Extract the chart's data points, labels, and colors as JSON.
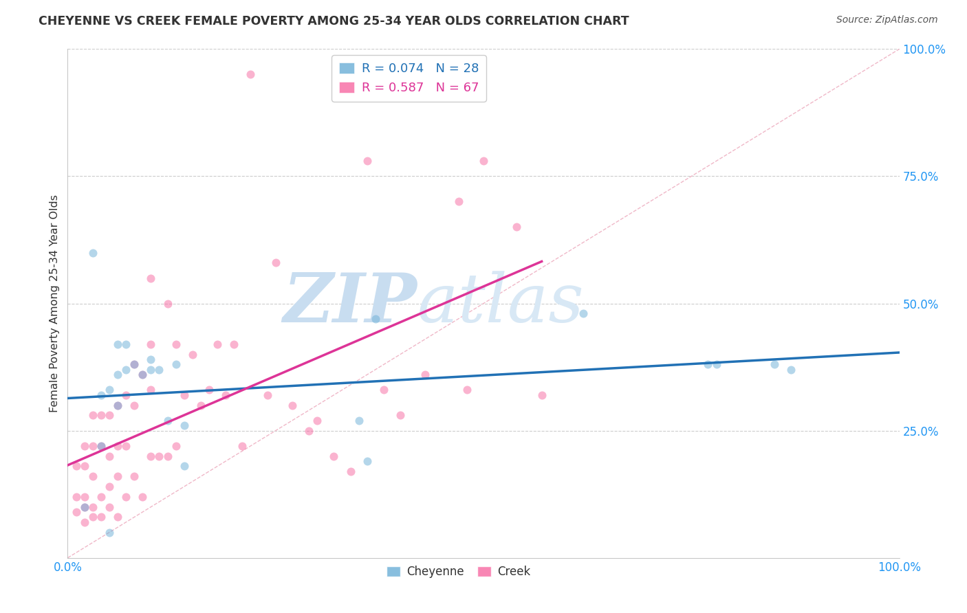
{
  "title": "CHEYENNE VS CREEK FEMALE POVERTY AMONG 25-34 YEAR OLDS CORRELATION CHART",
  "source": "Source: ZipAtlas.com",
  "ylabel": "Female Poverty Among 25-34 Year Olds",
  "legend_cheyenne": "R = 0.074   N = 28",
  "legend_creek": "R = 0.587   N = 67",
  "cheyenne_color": "#6baed6",
  "creek_color": "#f768a1",
  "trendline_cheyenne_color": "#2171b5",
  "trendline_creek_color": "#dd3497",
  "diagonal_color": "#cccccc",
  "cheyenne_x": [
    0.02,
    0.03,
    0.04,
    0.04,
    0.05,
    0.05,
    0.06,
    0.06,
    0.06,
    0.07,
    0.07,
    0.08,
    0.09,
    0.1,
    0.1,
    0.11,
    0.12,
    0.13,
    0.14,
    0.14,
    0.35,
    0.36,
    0.37,
    0.62,
    0.77,
    0.78,
    0.85,
    0.87
  ],
  "cheyenne_y": [
    0.1,
    0.6,
    0.32,
    0.22,
    0.05,
    0.33,
    0.3,
    0.36,
    0.42,
    0.37,
    0.42,
    0.38,
    0.36,
    0.37,
    0.39,
    0.37,
    0.27,
    0.38,
    0.26,
    0.18,
    0.27,
    0.19,
    0.47,
    0.48,
    0.38,
    0.38,
    0.38,
    0.37
  ],
  "creek_x": [
    0.01,
    0.01,
    0.01,
    0.02,
    0.02,
    0.02,
    0.02,
    0.02,
    0.03,
    0.03,
    0.03,
    0.03,
    0.03,
    0.04,
    0.04,
    0.04,
    0.04,
    0.05,
    0.05,
    0.05,
    0.05,
    0.06,
    0.06,
    0.06,
    0.06,
    0.07,
    0.07,
    0.07,
    0.08,
    0.08,
    0.08,
    0.09,
    0.09,
    0.1,
    0.1,
    0.1,
    0.1,
    0.11,
    0.12,
    0.12,
    0.13,
    0.13,
    0.14,
    0.15,
    0.16,
    0.17,
    0.18,
    0.19,
    0.2,
    0.21,
    0.22,
    0.24,
    0.25,
    0.27,
    0.29,
    0.3,
    0.32,
    0.34,
    0.36,
    0.38,
    0.4,
    0.43,
    0.47,
    0.48,
    0.5,
    0.54,
    0.57
  ],
  "creek_y": [
    0.09,
    0.12,
    0.18,
    0.07,
    0.1,
    0.12,
    0.18,
    0.22,
    0.08,
    0.1,
    0.16,
    0.22,
    0.28,
    0.08,
    0.12,
    0.22,
    0.28,
    0.1,
    0.14,
    0.2,
    0.28,
    0.08,
    0.16,
    0.22,
    0.3,
    0.12,
    0.22,
    0.32,
    0.16,
    0.3,
    0.38,
    0.12,
    0.36,
    0.2,
    0.33,
    0.42,
    0.55,
    0.2,
    0.2,
    0.5,
    0.22,
    0.42,
    0.32,
    0.4,
    0.3,
    0.33,
    0.42,
    0.32,
    0.42,
    0.22,
    0.95,
    0.32,
    0.58,
    0.3,
    0.25,
    0.27,
    0.2,
    0.17,
    0.78,
    0.33,
    0.28,
    0.36,
    0.7,
    0.33,
    0.78,
    0.65,
    0.32
  ],
  "background_color": "#ffffff",
  "watermark_zip": "ZIP",
  "watermark_atlas": "atlas",
  "watermark_color": "#cce0f0",
  "xlim": [
    0.0,
    1.0
  ],
  "ylim": [
    0.0,
    1.0
  ],
  "xtick_positions": [
    0.0,
    1.0
  ],
  "xtick_labels": [
    "0.0%",
    "100.0%"
  ],
  "ytick_positions": [
    0.0,
    0.25,
    0.5,
    0.75,
    1.0
  ],
  "ytick_labels": [
    "",
    "25.0%",
    "50.0%",
    "75.0%",
    "100.0%"
  ],
  "marker_size": 75,
  "marker_alpha": 0.5,
  "grid_yticks": [
    0.25,
    0.5,
    0.75,
    1.0
  ]
}
